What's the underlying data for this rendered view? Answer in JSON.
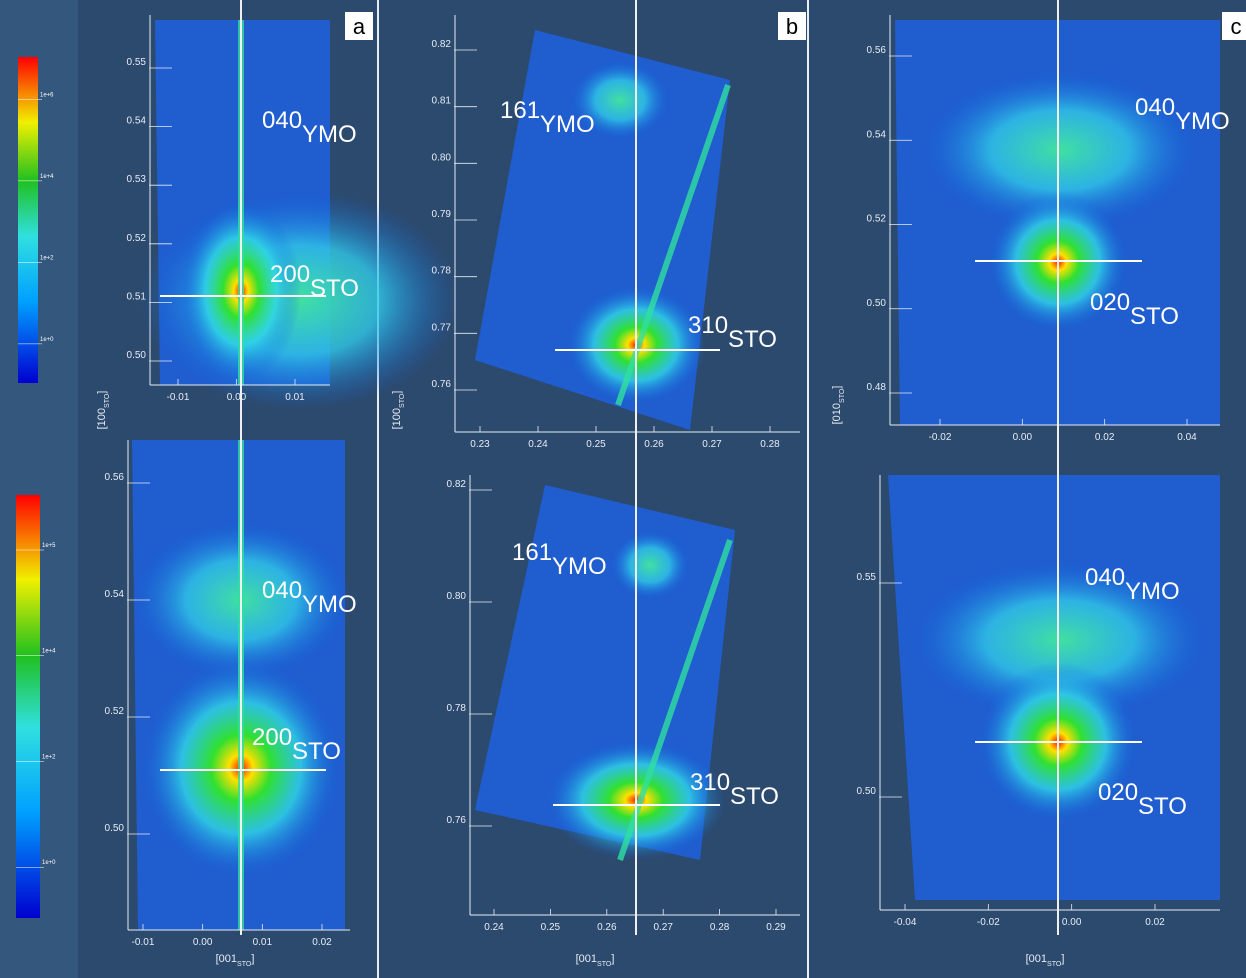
{
  "colorbars": [
    {
      "labels": [
        "1e+6",
        "1e+4",
        "1e+2",
        "1e+0"
      ]
    },
    {
      "labels": [
        "1e+5",
        "1e+4",
        "1e+2",
        "1e+0"
      ]
    }
  ],
  "panels": [
    {
      "letter": "a",
      "x_axis_label": {
        "pre": "[001",
        "sub": "STO",
        "post": "]"
      },
      "y_axis_label": {
        "pre": "[100",
        "sub": "STO",
        "post": "]"
      },
      "plots": [
        {
          "yticks": [
            "0.55",
            "0.54",
            "0.53",
            "0.52",
            "0.51",
            "0.50"
          ],
          "xticks": [
            "-0.01",
            "0.00",
            "0.01"
          ],
          "peaks": [
            {
              "main": "040",
              "sub": "YMO"
            },
            {
              "main": "200",
              "sub": "STO"
            }
          ]
        },
        {
          "yticks": [
            "0.56",
            "0.54",
            "0.52",
            "0.50"
          ],
          "xticks": [
            "-0.01",
            "0.00",
            "0.01",
            "0.02"
          ],
          "peaks": [
            {
              "main": "040",
              "sub": "YMO"
            },
            {
              "main": "200",
              "sub": "STO"
            }
          ]
        }
      ]
    },
    {
      "letter": "b",
      "x_axis_label": {
        "pre": "[001",
        "sub": "STO",
        "post": "]"
      },
      "y_axis_label": {
        "pre": "[100",
        "sub": "STO",
        "post": "]"
      },
      "plots": [
        {
          "yticks": [
            "0.82",
            "0.81",
            "0.80",
            "0.79",
            "0.78",
            "0.77",
            "0.76"
          ],
          "xticks": [
            "0.23",
            "0.24",
            "0.25",
            "0.26",
            "0.27",
            "0.28"
          ],
          "peaks": [
            {
              "main": "161",
              "sub": "YMO"
            },
            {
              "main": "310",
              "sub": "STO"
            }
          ]
        },
        {
          "yticks": [
            "0.82",
            "0.80",
            "0.78",
            "0.76"
          ],
          "xticks": [
            "0.24",
            "0.25",
            "0.26",
            "0.27",
            "0.28",
            "0.29"
          ],
          "peaks": [
            {
              "main": "161",
              "sub": "YMO"
            },
            {
              "main": "310",
              "sub": "STO"
            }
          ]
        }
      ]
    },
    {
      "letter": "c",
      "x_axis_label": {
        "pre": "[001",
        "sub": "STO",
        "post": "]"
      },
      "y_axis_label": {
        "pre": "[010",
        "sub": "STO",
        "post": "]"
      },
      "plots": [
        {
          "yticks": [
            "0.56",
            "0.54",
            "0.52",
            "0.50",
            "0.48"
          ],
          "xticks": [
            "-0.02",
            "0.00",
            "0.02",
            "0.04"
          ],
          "peaks": [
            {
              "main": "040",
              "sub": "YMO"
            },
            {
              "main": "020",
              "sub": "STO"
            }
          ]
        },
        {
          "yticks": [
            "0.55",
            "0.50"
          ],
          "xticks": [
            "-0.04",
            "-0.02",
            "0.00",
            "0.02"
          ],
          "peaks": [
            {
              "main": "040",
              "sub": "YMO"
            },
            {
              "main": "020",
              "sub": "STO"
            }
          ]
        }
      ]
    }
  ]
}
